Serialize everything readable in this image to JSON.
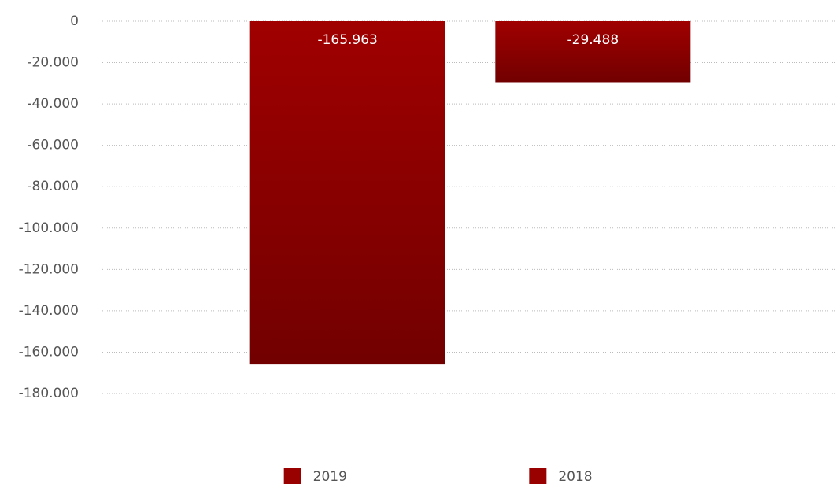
{
  "chart_data": {
    "type": "bar",
    "series": [
      {
        "name": "2019",
        "color": "#990000",
        "values": [
          -165963
        ],
        "value_labels": [
          "-165.963"
        ]
      },
      {
        "name": "2018",
        "color": "#990000",
        "values": [
          -29488
        ],
        "value_labels": [
          "-29.488"
        ]
      }
    ],
    "ylim": [
      -180000,
      0
    ],
    "yticks": [
      0,
      {
        "value": -20000,
        "label": "-20.000"
      },
      {
        "value": -40000,
        "label": "-40.000"
      },
      {
        "value": -60000,
        "label": "-60.000"
      },
      {
        "value": -80000,
        "label": "-80.000"
      },
      {
        "value": -100000,
        "label": "-100.000"
      },
      {
        "value": -120000,
        "label": "-120.000"
      },
      {
        "value": -140000,
        "label": "-140.000"
      },
      {
        "value": -160000,
        "label": "-160.000"
      },
      {
        "value": -180000,
        "label": "-180.000"
      }
    ],
    "grid": true,
    "legend": "bottom"
  }
}
